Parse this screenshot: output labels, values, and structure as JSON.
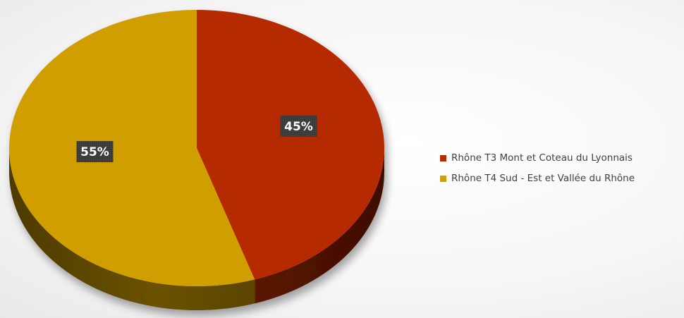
{
  "chart_data": {
    "type": "pie",
    "title": "",
    "categories": [
      "Rhône T3 Mont et Coteau du Lyonnais",
      "Rhône T4 Sud - Est et Vallée du Rhône"
    ],
    "values": [
      45,
      55
    ],
    "data_labels": [
      "45%",
      "55%"
    ],
    "colors": [
      "#b52a00",
      "#d19e00"
    ],
    "legend_position": "right",
    "style": "3d"
  }
}
